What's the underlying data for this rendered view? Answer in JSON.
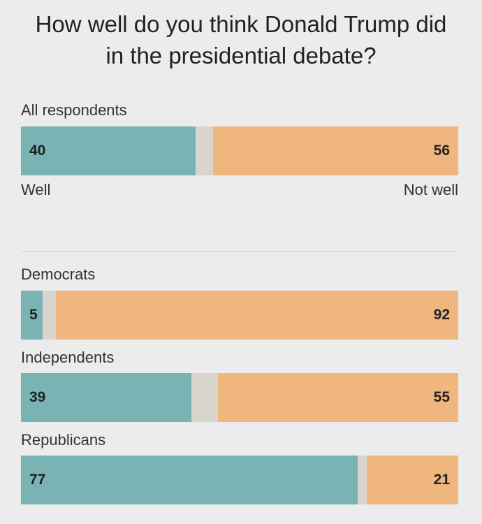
{
  "chart_data": {
    "type": "bar",
    "orientation": "horizontal",
    "title": "How well do you think Donald Trump did in the presidential debate?",
    "categories": [
      "All respondents",
      "Democrats",
      "Independents",
      "Republicans"
    ],
    "series": [
      {
        "name": "Well",
        "color": "#7ab3b4",
        "values": [
          40,
          5,
          39,
          77
        ]
      },
      {
        "name": "Not well",
        "color": "#efb67d",
        "values": [
          56,
          92,
          55,
          21
        ]
      }
    ],
    "xlim": [
      0,
      100
    ]
  }
}
